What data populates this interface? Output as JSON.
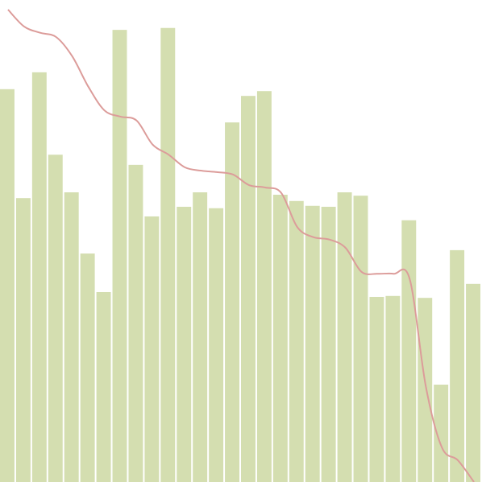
{
  "chart_data": {
    "type": "bar",
    "ylim": [
      0,
      100
    ],
    "series": [
      {
        "type": "bar",
        "color": "#d4deb0",
        "values": [
          81.5,
          58.9,
          85.0,
          67.9,
          60.1,
          47.4,
          39.4,
          93.8,
          65.8,
          55.1,
          94.2,
          57.1,
          60.1,
          56.8,
          74.6,
          80.1,
          81.1,
          59.6,
          58.3,
          57.3,
          57.1,
          60.1,
          59.4,
          38.4,
          38.6,
          54.3,
          38.2,
          20.2,
          48.1,
          41.1
        ]
      },
      {
        "type": "line",
        "color": "#dc9c9a",
        "values": [
          98.0,
          94.5,
          93.2,
          92.3,
          88.3,
          82.0,
          77.1,
          75.8,
          75.0,
          70.0,
          67.9,
          65.3,
          64.6,
          64.3,
          63.8,
          61.6,
          61.1,
          60.0,
          52.9,
          50.8,
          50.3,
          48.6,
          43.6,
          43.2,
          43.2,
          42.1,
          19.9,
          7.2,
          4.5,
          0
        ]
      }
    ]
  }
}
